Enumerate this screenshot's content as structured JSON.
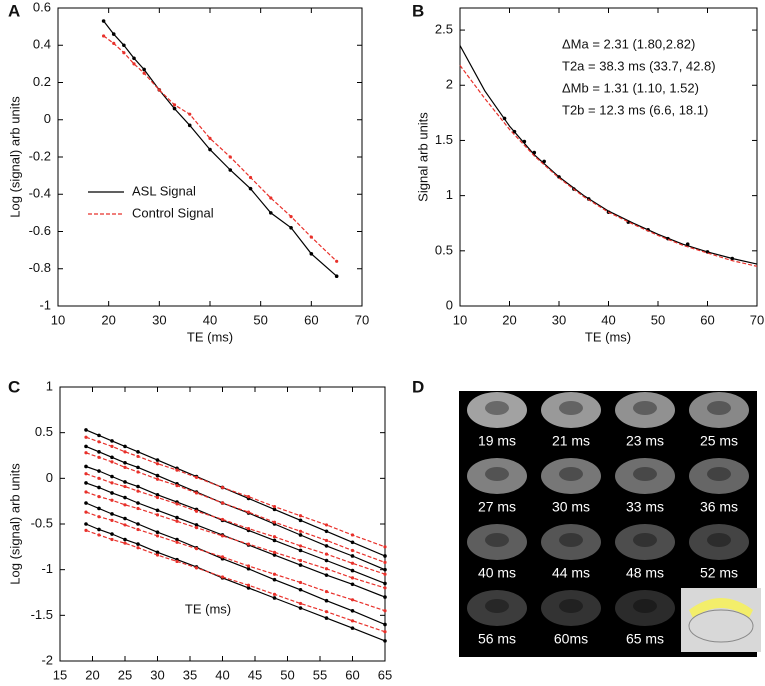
{
  "chart_data": [
    {
      "type": "line",
      "label": "A",
      "xlabel": "TE (ms)",
      "ylabel": "Log (signal) arb units",
      "x": [
        19,
        21,
        23,
        25,
        27,
        30,
        33,
        36,
        40,
        44,
        48,
        52,
        56,
        60,
        65
      ],
      "series": [
        {
          "name": "ASL Signal",
          "color": "#000000",
          "markers": true,
          "values": [
            0.53,
            0.46,
            0.4,
            0.33,
            0.27,
            0.16,
            0.06,
            -0.03,
            -0.16,
            -0.27,
            -0.37,
            -0.5,
            -0.58,
            -0.72,
            -0.84
          ]
        },
        {
          "name": "Control Signal",
          "color": "#e8302a",
          "dash": true,
          "markers": true,
          "values": [
            0.45,
            0.41,
            0.36,
            0.3,
            0.25,
            0.16,
            0.08,
            0.03,
            -0.1,
            -0.2,
            -0.31,
            -0.42,
            -0.52,
            -0.63,
            -0.76
          ]
        }
      ],
      "xlim": [
        10,
        70
      ],
      "xticks": [
        10,
        20,
        30,
        40,
        50,
        60,
        70
      ],
      "ylim": [
        -1,
        0.6
      ],
      "yticks": [
        -1,
        -0.8,
        -0.6,
        -0.4,
        -0.2,
        0,
        0.2,
        0.4,
        0.6
      ],
      "legend": "center-left"
    },
    {
      "type": "line",
      "label": "B",
      "xlabel": "TE (ms)",
      "ylabel": "Signal arb units",
      "x": [
        19,
        21,
        23,
        25,
        27,
        30,
        33,
        36,
        40,
        44,
        48,
        52,
        56,
        60,
        65
      ],
      "series": [
        {
          "color": "#000000",
          "line": false,
          "markers": true,
          "values": [
            1.7,
            1.58,
            1.49,
            1.39,
            1.31,
            1.17,
            1.06,
            0.97,
            0.85,
            0.76,
            0.69,
            0.61,
            0.56,
            0.49,
            0.43
          ]
        },
        {
          "color": "#000000",
          "x": [
            10,
            15,
            20,
            25,
            30,
            35,
            40,
            45,
            50,
            55,
            60,
            65,
            70
          ],
          "values": [
            2.36,
            1.95,
            1.63,
            1.37,
            1.17,
            1.0,
            0.86,
            0.75,
            0.65,
            0.56,
            0.49,
            0.43,
            0.38
          ]
        },
        {
          "color": "#e8302a",
          "dash": true,
          "x": [
            10,
            15,
            20,
            25,
            30,
            35,
            40,
            45,
            50,
            55,
            60,
            65,
            70
          ],
          "values": [
            2.18,
            1.88,
            1.6,
            1.36,
            1.16,
            0.99,
            0.85,
            0.74,
            0.64,
            0.55,
            0.48,
            0.41,
            0.36
          ]
        }
      ],
      "xlim": [
        10,
        70
      ],
      "xticks": [
        10,
        20,
        30,
        40,
        50,
        60,
        70
      ],
      "ylim": [
        0,
        2.7
      ],
      "yticks": [
        0,
        0.5,
        1,
        1.5,
        2,
        2.5
      ],
      "annotations": [
        "ΔMa = 2.31 (1.80,2.82)",
        "T2a = 38.3 ms (33.7, 42.8)",
        "ΔMb = 1.31 (1.10, 1.52)",
        "T2b = 12.3 ms (6.6, 18.1)"
      ]
    },
    {
      "type": "line",
      "label": "C",
      "xlabel": "TE (ms)",
      "ylabel": "Log (signal) arb units",
      "x": [
        19,
        21,
        23,
        25,
        27,
        30,
        33,
        36,
        40,
        44,
        48,
        52,
        56,
        60,
        65
      ],
      "series": [
        {
          "color": "#000000",
          "markers": true,
          "values": [
            0.53,
            0.47,
            0.41,
            0.35,
            0.29,
            0.2,
            0.11,
            0.02,
            -0.1,
            -0.22,
            -0.34,
            -0.46,
            -0.58,
            -0.7,
            -0.85
          ]
        },
        {
          "color": "#e8302a",
          "dash": true,
          "markers": true,
          "values": [
            0.45,
            0.4,
            0.35,
            0.29,
            0.24,
            0.16,
            0.09,
            0.01,
            -0.1,
            -0.2,
            -0.31,
            -0.41,
            -0.51,
            -0.62,
            -0.75
          ]
        },
        {
          "color": "#000000",
          "markers": true,
          "values": [
            0.35,
            0.29,
            0.23,
            0.17,
            0.12,
            0.03,
            -0.06,
            -0.15,
            -0.27,
            -0.38,
            -0.5,
            -0.62,
            -0.74,
            -0.85,
            -1.0
          ]
        },
        {
          "color": "#e8302a",
          "dash": true,
          "markers": true,
          "values": [
            0.28,
            0.23,
            0.18,
            0.12,
            0.07,
            -0.01,
            -0.08,
            -0.16,
            -0.27,
            -0.37,
            -0.48,
            -0.58,
            -0.68,
            -0.79,
            -0.92
          ]
        },
        {
          "color": "#000000",
          "markers": true,
          "values": [
            0.13,
            0.08,
            0.02,
            -0.04,
            -0.09,
            -0.18,
            -0.26,
            -0.34,
            -0.46,
            -0.57,
            -0.68,
            -0.79,
            -0.9,
            -1.01,
            -1.15
          ]
        },
        {
          "color": "#e8302a",
          "dash": true,
          "markers": true,
          "values": [
            0.05,
            0.0,
            -0.05,
            -0.09,
            -0.14,
            -0.21,
            -0.28,
            -0.36,
            -0.45,
            -0.55,
            -0.64,
            -0.74,
            -0.83,
            -0.93,
            -1.05
          ]
        },
        {
          "color": "#000000",
          "markers": true,
          "values": [
            -0.05,
            -0.1,
            -0.16,
            -0.21,
            -0.27,
            -0.35,
            -0.43,
            -0.51,
            -0.62,
            -0.73,
            -0.84,
            -0.95,
            -1.06,
            -1.16,
            -1.3
          ]
        },
        {
          "color": "#e8302a",
          "dash": true,
          "markers": true,
          "values": [
            -0.15,
            -0.2,
            -0.24,
            -0.29,
            -0.33,
            -0.4,
            -0.47,
            -0.54,
            -0.63,
            -0.72,
            -0.81,
            -0.9,
            -0.99,
            -1.09,
            -1.2
          ]
        },
        {
          "color": "#000000",
          "markers": true,
          "values": [
            -0.27,
            -0.33,
            -0.39,
            -0.44,
            -0.5,
            -0.59,
            -0.67,
            -0.76,
            -0.88,
            -0.99,
            -1.11,
            -1.22,
            -1.34,
            -1.45,
            -1.6
          ]
        },
        {
          "color": "#e8302a",
          "dash": true,
          "markers": true,
          "values": [
            -0.37,
            -0.42,
            -0.46,
            -0.51,
            -0.56,
            -0.63,
            -0.7,
            -0.77,
            -0.86,
            -0.96,
            -1.05,
            -1.14,
            -1.24,
            -1.33,
            -1.45
          ]
        },
        {
          "color": "#000000",
          "markers": true,
          "values": [
            -0.5,
            -0.56,
            -0.61,
            -0.67,
            -0.72,
            -0.81,
            -0.89,
            -0.97,
            -1.09,
            -1.2,
            -1.31,
            -1.42,
            -1.53,
            -1.64,
            -1.78
          ]
        },
        {
          "color": "#e8302a",
          "dash": true,
          "markers": true,
          "values": [
            -0.57,
            -0.62,
            -0.67,
            -0.71,
            -0.76,
            -0.84,
            -0.91,
            -0.98,
            -1.08,
            -1.17,
            -1.27,
            -1.37,
            -1.46,
            -1.56,
            -1.68
          ]
        }
      ],
      "xlim": [
        15,
        65
      ],
      "xticks": [
        15,
        20,
        25,
        30,
        35,
        40,
        45,
        50,
        55,
        60,
        65
      ],
      "ylim": [
        -2,
        1
      ],
      "yticks": [
        -2,
        -1.5,
        -1,
        -0.5,
        0,
        0.5,
        1
      ]
    }
  ],
  "image_panel": {
    "label": "D",
    "captions": [
      "19 ms",
      "21 ms",
      "23 ms",
      "25 ms",
      "27 ms",
      "30 ms",
      "33 ms",
      "36 ms",
      "40 ms",
      "44 ms",
      "48 ms",
      "52 ms",
      "56 ms",
      "60ms",
      "65 ms"
    ]
  }
}
